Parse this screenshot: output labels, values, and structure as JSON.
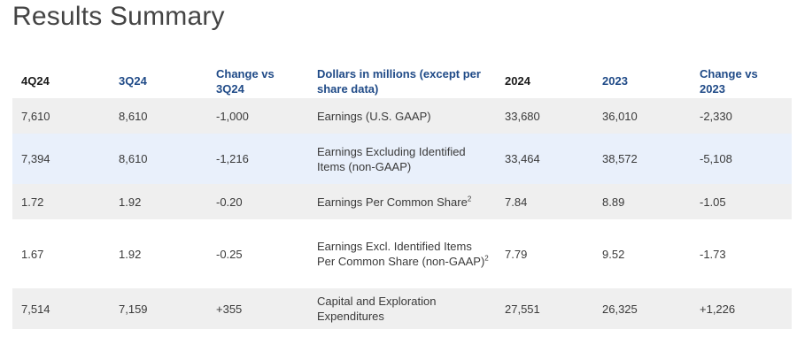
{
  "page": {
    "title": "Results Summary"
  },
  "table": {
    "headers": {
      "q_current": "4Q24",
      "q_prior": "3Q24",
      "q_change": "Change vs 3Q24",
      "metric": "Dollars in millions (except per share data)",
      "y_current": "2024",
      "y_prior": "2023",
      "y_change": "Change vs 2023"
    },
    "rows": [
      {
        "q_current": "7,610",
        "q_prior": "8,610",
        "q_change": "-1,000",
        "metric": "Earnings (U.S. GAAP)",
        "metric_note": "",
        "y_current": "33,680",
        "y_prior": "36,010",
        "y_change": "-2,330"
      },
      {
        "q_current": "7,394",
        "q_prior": "8,610",
        "q_change": "-1,216",
        "metric": "Earnings Excluding Identified Items (non-GAAP)",
        "metric_note": "",
        "y_current": "33,464",
        "y_prior": "38,572",
        "y_change": "-5,108"
      },
      {
        "q_current": "1.72",
        "q_prior": "1.92",
        "q_change": "-0.20",
        "metric": "Earnings Per Common Share",
        "metric_note": "2",
        "y_current": "7.84",
        "y_prior": "8.89",
        "y_change": "-1.05"
      },
      {
        "q_current": "1.67",
        "q_prior": "1.92",
        "q_change": "-0.25",
        "metric": "Earnings Excl. Identified Items Per Common Share (non-GAAP)",
        "metric_note": "2",
        "y_current": "7.79",
        "y_prior": "9.52",
        "y_change": "-1.73"
      },
      {
        "q_current": "7,514",
        "q_prior": "7,159",
        "q_change": "+355",
        "metric": "Capital and Exploration Expenditures",
        "metric_note": "",
        "y_current": "27,551",
        "y_prior": "26,325",
        "y_change": "+1,226"
      }
    ]
  },
  "colors": {
    "header_dark": "#1a1a1a",
    "header_blue": "#1f4a87",
    "row_gray": "#efefef",
    "row_highlight": "#e9f0fb"
  }
}
